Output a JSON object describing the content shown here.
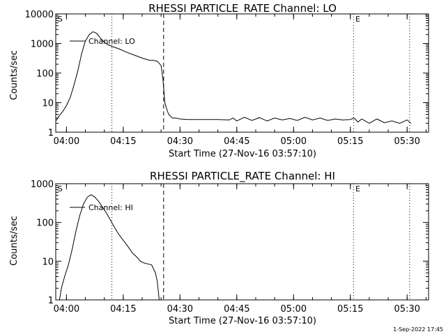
{
  "footer_timestamp": "1-Sep-2022 17:45",
  "chart_data": [
    {
      "type": "line",
      "title": "RHESSI PARTICLE_RATE Channel: LO",
      "xlabel": "Start Time (27-Nov-16 03:57:10)",
      "ylabel": "Counts/sec",
      "xscale": "time",
      "yscale": "log",
      "xlim": [
        "03:57:10",
        "05:35:40"
      ],
      "ylim": [
        1,
        10000
      ],
      "xtick_labels": [
        "04:00",
        "04:15",
        "04:30",
        "04:45",
        "05:00",
        "05:15",
        "05:30"
      ],
      "ytick_labels": [
        "1",
        "10",
        "100",
        "1000",
        "10000"
      ],
      "legend": {
        "position": "top-left",
        "entries": [
          "Channel: LO"
        ]
      },
      "annotations": [
        {
          "text": "S",
          "x": "03:57:40"
        },
        {
          "text": "E",
          "x": "05:16:20"
        }
      ],
      "vlines": [
        {
          "x": "04:12:00",
          "style": "dotted"
        },
        {
          "x": "04:25:40",
          "style": "dashed"
        },
        {
          "x": "05:15:50",
          "style": "dotted"
        },
        {
          "x": "05:30:40",
          "style": "dotted"
        }
      ],
      "series": [
        {
          "x": [
            "03:57:20",
            "03:58:00",
            "03:59:00",
            "04:00:00",
            "04:01:00",
            "04:02:00",
            "04:03:00",
            "04:04:00",
            "04:05:00",
            "04:06:00",
            "04:07:00",
            "04:08:00",
            "04:09:00",
            "04:10:00",
            "04:11:00",
            "04:12:00",
            "04:14:00",
            "04:16:00",
            "04:18:00",
            "04:20:00",
            "04:22:00",
            "04:23:00",
            "04:24:00",
            "04:25:00",
            "04:25:30",
            "04:26:00",
            "04:26:30",
            "04:27:00",
            "04:28:00",
            "04:29:00",
            "04:30:00",
            "04:32:00",
            "04:36:00",
            "04:40:00",
            "04:43:00",
            "04:44:00",
            "04:45:00",
            "04:47:00",
            "04:49:00",
            "04:51:00",
            "04:53:00",
            "04:55:00",
            "04:57:00",
            "04:59:00",
            "05:01:00",
            "05:03:00",
            "05:05:00",
            "05:07:00",
            "05:09:00",
            "05:11:00",
            "05:13:00",
            "05:15:00",
            "05:16:00",
            "05:17:00",
            "05:18:00",
            "05:20:00",
            "05:22:00",
            "05:24:00",
            "05:26:00",
            "05:28:00",
            "05:30:00",
            "05:31:00"
          ],
          "values": [
            2.5,
            3.5,
            5,
            8,
            15,
            40,
            120,
            450,
            1200,
            2000,
            2500,
            2200,
            1500,
            1100,
            900,
            800,
            650,
            500,
            400,
            320,
            270,
            270,
            250,
            180,
            60,
            10,
            6,
            4,
            3,
            3,
            2.8,
            2.7,
            2.7,
            2.7,
            2.6,
            3,
            2.4,
            3.2,
            2.5,
            3.1,
            2.4,
            3,
            2.6,
            2.9,
            2.5,
            3.2,
            2.6,
            3,
            2.5,
            2.8,
            2.6,
            2.7,
            3,
            2.2,
            2.8,
            2,
            2.8,
            2.1,
            2.4,
            2,
            2.6,
            2
          ]
        }
      ]
    },
    {
      "type": "line",
      "title": "RHESSI PARTICLE_RATE Channel: HI",
      "xlabel": "Start Time (27-Nov-16 03:57:10)",
      "ylabel": "Counts/sec",
      "xscale": "time",
      "yscale": "log",
      "xlim": [
        "03:57:10",
        "05:35:40"
      ],
      "ylim": [
        1,
        1000
      ],
      "xtick_labels": [
        "04:00",
        "04:15",
        "04:30",
        "04:45",
        "05:00",
        "05:15",
        "05:30"
      ],
      "ytick_labels": [
        "1",
        "10",
        "100",
        "1000"
      ],
      "legend": {
        "position": "top-left",
        "entries": [
          "Channel: HI"
        ]
      },
      "annotations": [
        {
          "text": "S",
          "x": "03:57:40"
        },
        {
          "text": "E",
          "x": "05:16:20"
        }
      ],
      "vlines": [
        {
          "x": "04:12:00",
          "style": "dotted"
        },
        {
          "x": "04:25:40",
          "style": "dashed"
        },
        {
          "x": "05:15:50",
          "style": "dotted"
        },
        {
          "x": "05:30:40",
          "style": "dotted"
        }
      ],
      "series": [
        {
          "x": [
            "03:58:10",
            "03:58:40",
            "03:59:30",
            "04:00:30",
            "04:01:30",
            "04:02:30",
            "04:03:30",
            "04:04:30",
            "04:05:30",
            "04:06:30",
            "04:07:30",
            "04:08:30",
            "04:09:30",
            "04:10:30",
            "04:11:30",
            "04:12:30",
            "04:13:30",
            "04:14:30",
            "04:15:30",
            "04:16:30",
            "04:17:30",
            "04:18:30",
            "04:19:30",
            "04:20:30",
            "04:21:30",
            "04:22:30",
            "04:23:30",
            "04:24:00",
            "04:24:30"
          ],
          "values": [
            1,
            2,
            4,
            8,
            20,
            60,
            150,
            300,
            450,
            520,
            450,
            350,
            250,
            180,
            120,
            80,
            55,
            40,
            30,
            22,
            16,
            13,
            10,
            9,
            8.5,
            8,
            5,
            3,
            1
          ]
        }
      ]
    }
  ]
}
